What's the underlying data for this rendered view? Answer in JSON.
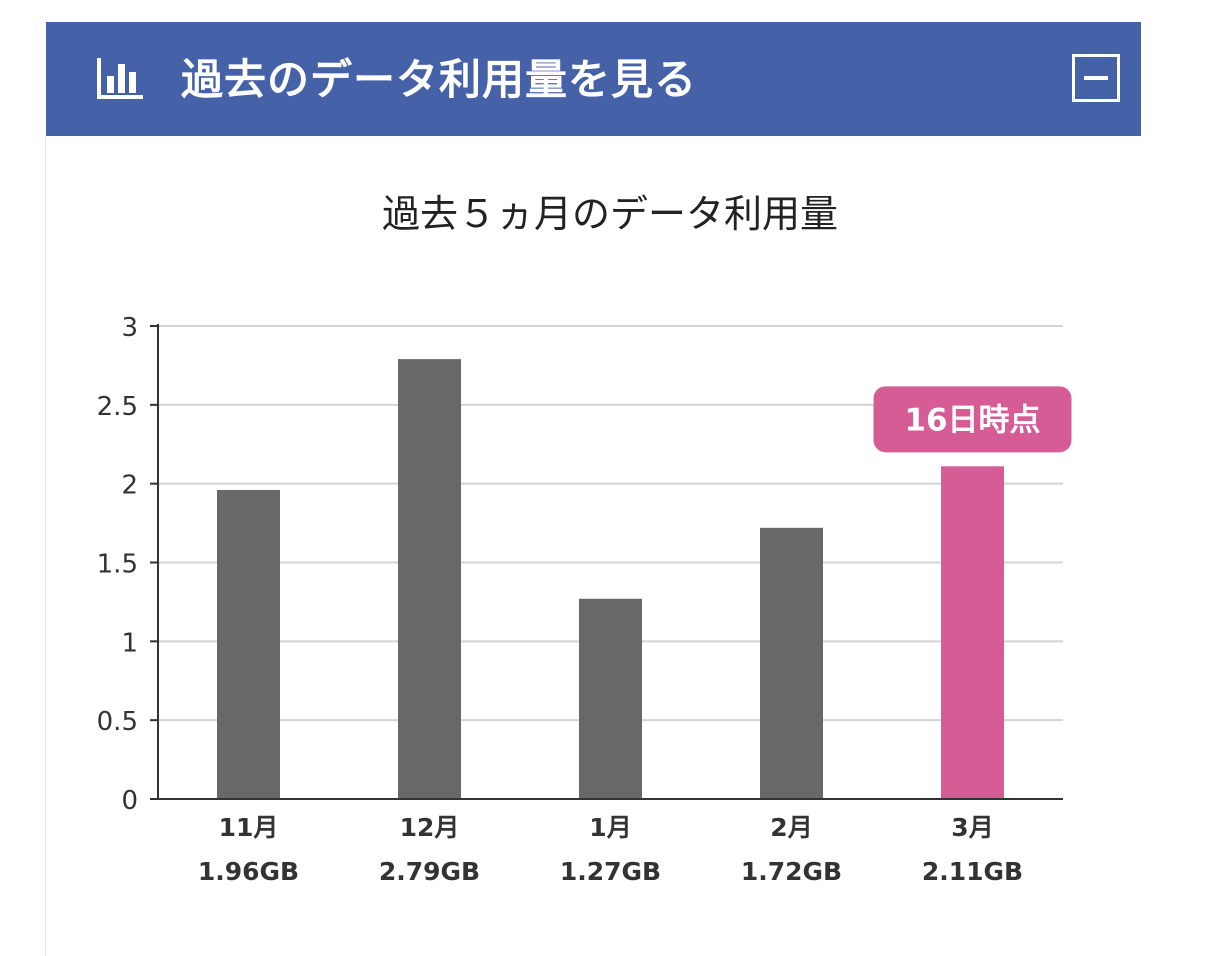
{
  "header": {
    "title": "過去のデータ利用量を見る",
    "icon": "bar-chart-icon",
    "collapse_icon": "minus-icon",
    "background": "#4561a8"
  },
  "chart_data": {
    "type": "bar",
    "title": "過去５ヵ月のデータ利用量",
    "xlabel": "",
    "ylabel": "",
    "categories": [
      "11月",
      "12月",
      "1月",
      "2月",
      "3月"
    ],
    "values": [
      1.96,
      2.79,
      1.27,
      1.72,
      2.11
    ],
    "value_labels": [
      "1.96GB",
      "2.79GB",
      "1.27GB",
      "1.72GB",
      "2.11GB"
    ],
    "ylim": [
      0,
      3
    ],
    "yticks": [
      0,
      0.5,
      1,
      1.5,
      2,
      2.5,
      3
    ],
    "ytick_labels": [
      "0",
      "0.5",
      "1",
      "1.5",
      "2",
      "2.5",
      "3"
    ],
    "grid": true,
    "highlight_index": 4,
    "highlight_label": "16日時点",
    "bar_color": "#686868",
    "highlight_color": "#d55c95",
    "grid_color": "#d4d4d4"
  }
}
